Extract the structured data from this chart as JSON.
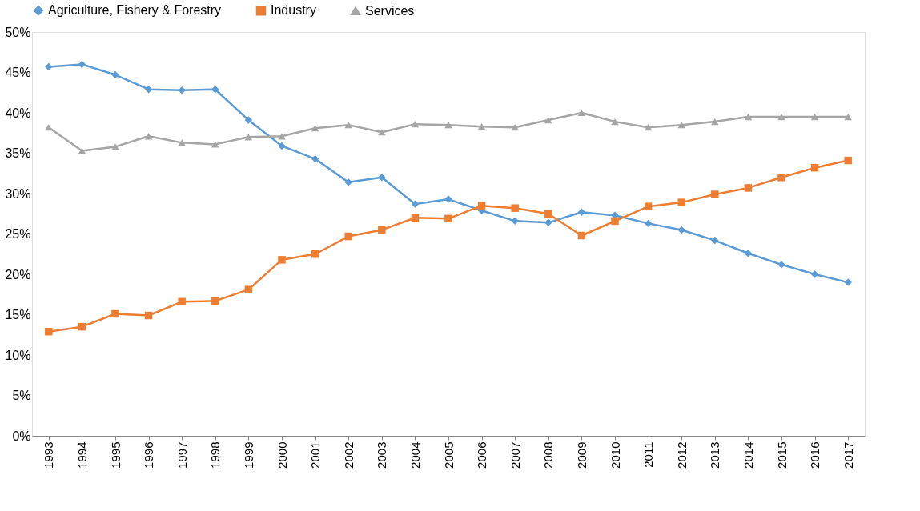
{
  "chart_data": {
    "type": "line",
    "categories": [
      "1993",
      "1994",
      "1995",
      "1996",
      "1997",
      "1998",
      "1999",
      "2000",
      "2001",
      "2002",
      "2003",
      "2004",
      "2005",
      "2006",
      "2007",
      "2008",
      "2009",
      "2010",
      "2011",
      "2012",
      "2013",
      "2014",
      "2015",
      "2016",
      "2017"
    ],
    "series": [
      {
        "name": "Agriculture, Fishery & Forestry",
        "color": "#5b9bd5",
        "marker": "diamond",
        "values": [
          45.7,
          46.0,
          44.7,
          42.9,
          42.8,
          42.9,
          39.1,
          35.9,
          34.3,
          31.4,
          32.0,
          28.7,
          29.3,
          27.9,
          26.6,
          26.4,
          27.7,
          27.3,
          26.3,
          25.5,
          24.2,
          22.6,
          21.2,
          20.0,
          19.0
        ]
      },
      {
        "name": "Industry",
        "color": "#ed7d31",
        "marker": "square",
        "values": [
          12.9,
          13.5,
          15.1,
          14.9,
          16.6,
          16.7,
          18.1,
          21.8,
          22.5,
          24.7,
          25.5,
          27.0,
          26.9,
          28.5,
          28.2,
          27.5,
          24.8,
          26.6,
          28.4,
          28.9,
          29.9,
          30.7,
          32.0,
          33.2,
          34.1
        ]
      },
      {
        "name": "Services",
        "color": "#a5a5a5",
        "marker": "triangle",
        "values": [
          38.2,
          35.3,
          35.8,
          37.1,
          36.3,
          36.1,
          37.0,
          37.1,
          38.1,
          38.5,
          37.6,
          38.6,
          38.5,
          38.3,
          38.2,
          39.1,
          40.0,
          38.9,
          38.2,
          38.5,
          38.9,
          39.5,
          39.5,
          39.5,
          39.5
        ]
      }
    ],
    "ylim": [
      0,
      50
    ],
    "yticks": [
      {
        "value": 0,
        "label": "0%"
      },
      {
        "value": 5,
        "label": "5%"
      },
      {
        "value": 10,
        "label": "10%"
      },
      {
        "value": 15,
        "label": "15%"
      },
      {
        "value": 20,
        "label": "20%"
      },
      {
        "value": 25,
        "label": "25%"
      },
      {
        "value": 30,
        "label": "30%"
      },
      {
        "value": 35,
        "label": "35%"
      },
      {
        "value": 40,
        "label": "40%"
      },
      {
        "value": 45,
        "label": "45%"
      },
      {
        "value": 50,
        "label": "50%"
      }
    ],
    "grid": false,
    "legend": "top",
    "line_style": "solid"
  }
}
